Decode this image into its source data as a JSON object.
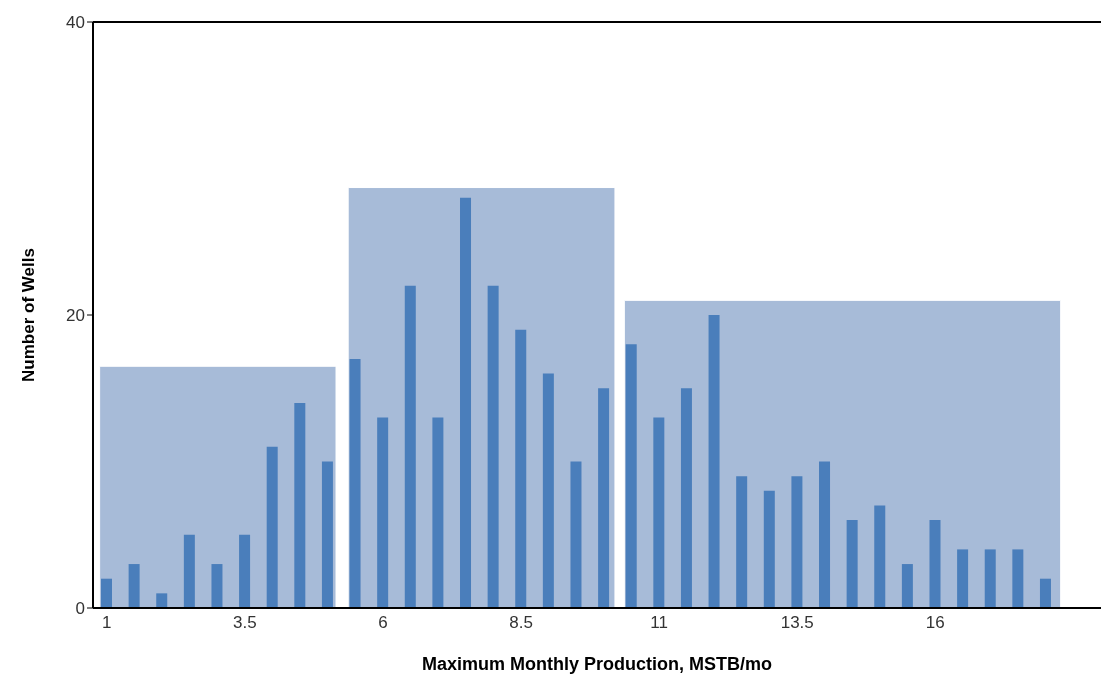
{
  "chart_data": {
    "type": "bar",
    "xlabel": "Maximum Monthly Production, MSTB/mo",
    "ylabel": "Number of Wells",
    "xlim": [
      0.75,
      19
    ],
    "xticks": [
      1,
      3.5,
      6,
      8.5,
      11,
      13.5,
      16
    ],
    "ylim": [
      0,
      40
    ],
    "yticks": [
      0,
      20,
      40
    ],
    "grid": false,
    "legend": false,
    "series": [
      {
        "type": "histogram",
        "color": "#a7bbd8",
        "bins": [
          0.87,
          5.15,
          5.37,
          10.2,
          10.37,
          18.27
        ],
        "values": [
          16.5,
          null,
          28.7,
          null,
          21
        ]
      },
      {
        "color": "#4a7ebb",
        "x": [
          1,
          1.5,
          2,
          2.5,
          3,
          3.5,
          4,
          4.5,
          5,
          5.5,
          6,
          6.5,
          7,
          7.5,
          8,
          8.5,
          9,
          9.5,
          10,
          10.5,
          11,
          11.5,
          12,
          12.5,
          13,
          13.5,
          14,
          14.5,
          15,
          15.5,
          16,
          16.5,
          17,
          17.5,
          18
        ],
        "values": [
          2,
          3,
          1,
          5,
          3,
          5,
          11,
          14,
          10,
          17,
          13,
          22,
          13,
          28,
          22,
          19,
          16,
          10,
          15,
          18,
          13,
          15,
          20,
          9,
          8,
          9,
          10,
          6,
          7,
          3,
          6,
          4,
          4,
          4,
          2
        ]
      }
    ]
  }
}
